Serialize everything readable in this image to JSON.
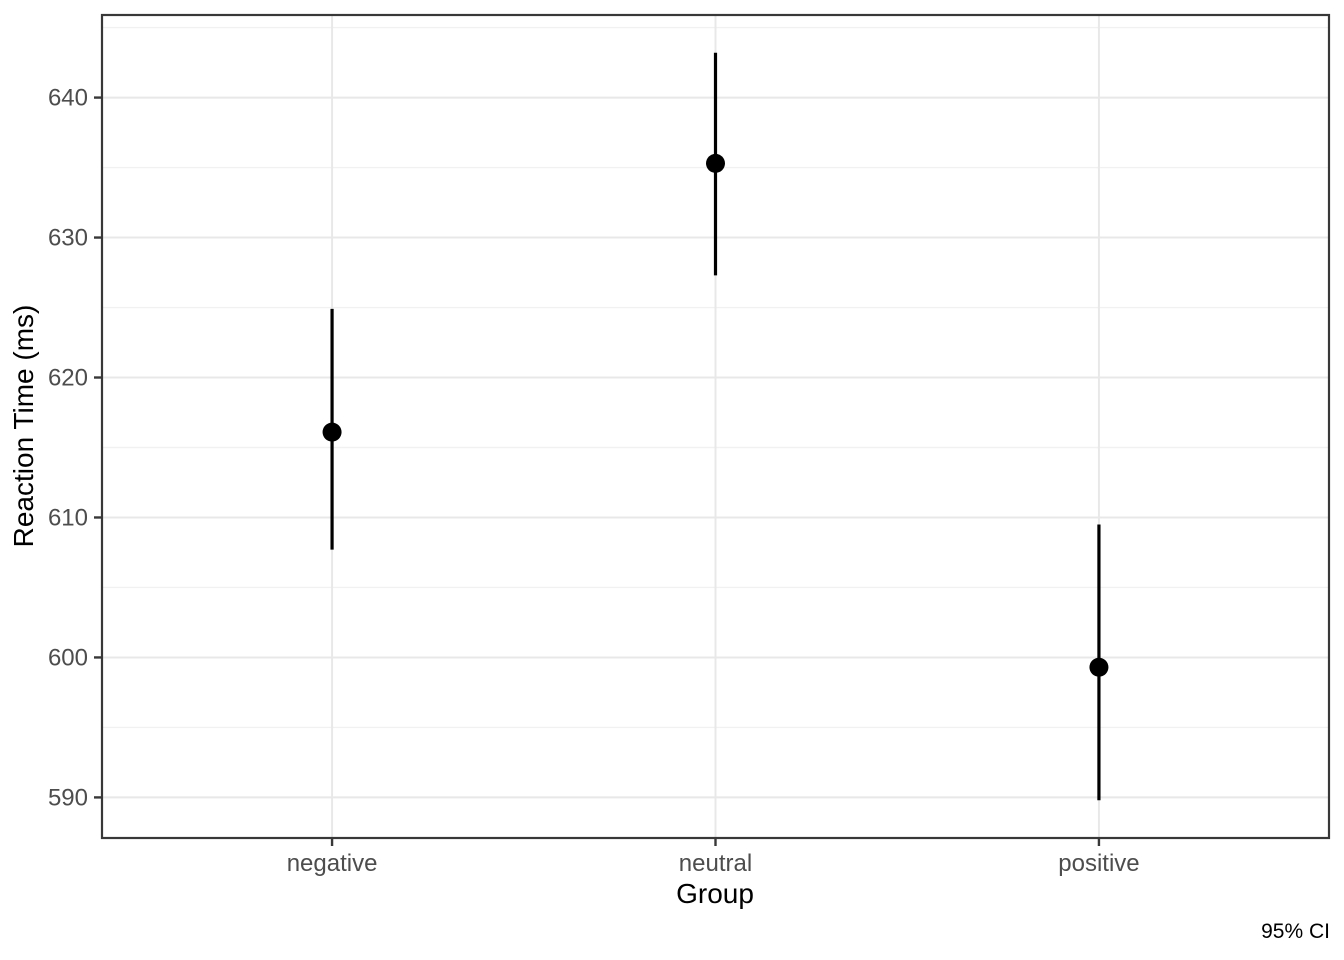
{
  "chart_data": {
    "type": "pointrange",
    "title": "",
    "xlabel": "Group",
    "ylabel": "Reaction Time (ms)",
    "caption": "95% CI",
    "categories": [
      "negative",
      "neutral",
      "positive"
    ],
    "series": [
      {
        "name": "mean_reaction_time_ms",
        "values": [
          616.1,
          635.3,
          599.3
        ],
        "ci_low": [
          607.7,
          627.3,
          589.8
        ],
        "ci_high": [
          624.9,
          643.2,
          609.5
        ]
      }
    ],
    "y_ticks": [
      590,
      600,
      610,
      620,
      630,
      640
    ],
    "ylim": [
      587.1,
      645.9
    ],
    "grid": "major-and-minor-horizontal",
    "legend": "none",
    "colors": {
      "point": "#000000",
      "range_line": "#000000",
      "major_grid": "#e8e8e8",
      "minor_grid": "#f1f1f1",
      "panel_border": "#383838",
      "tick_mark": "#383838",
      "tick_label": "#4d4d4d",
      "axis_title": "#000000",
      "caption": "#000000",
      "background": "#ffffff"
    }
  }
}
